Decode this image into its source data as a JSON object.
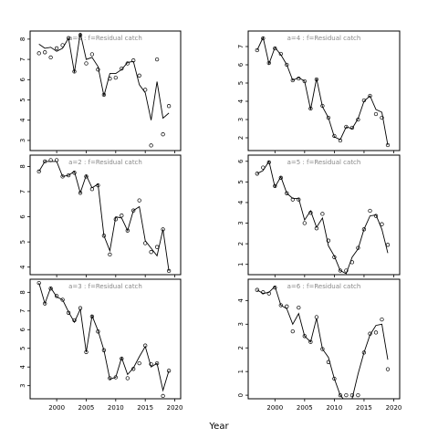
{
  "xlabel": "Year",
  "chart_data": [
    {
      "type": "line",
      "title": "a=0 : f=Residual catch",
      "x_ticks": [
        2000,
        2005,
        2010,
        2015,
        2020
      ],
      "y_ticks": [
        3,
        4,
        5,
        6,
        7,
        8
      ],
      "xlim": [
        1995.5,
        2021.0
      ],
      "ylim": [
        2.5,
        8.4
      ],
      "series": [
        {
          "kind": "points",
          "x": [
            1997,
            1998,
            1999,
            2000,
            2001,
            2002,
            2003,
            2004,
            2005,
            2006,
            2007,
            2008,
            2009,
            2010,
            2011,
            2012,
            2013,
            2014,
            2015,
            2016,
            2017,
            2018,
            2019
          ],
          "y": [
            7.3,
            7.35,
            7.1,
            7.55,
            7.7,
            8.05,
            6.4,
            8.2,
            6.8,
            7.25,
            6.5,
            5.25,
            6.05,
            6.1,
            6.55,
            6.8,
            6.95,
            6.2,
            5.5,
            2.75,
            7.0,
            3.3,
            4.7
          ]
        },
        {
          "kind": "line",
          "x": [
            1997,
            1998,
            1999,
            2000,
            2001,
            2002,
            2003,
            2004,
            2005,
            2006,
            2007,
            2008,
            2009,
            2010,
            2011,
            2012,
            2013,
            2014,
            2015,
            2016,
            2017,
            2018,
            2019
          ],
          "y": [
            7.75,
            7.55,
            7.6,
            7.4,
            7.55,
            8.05,
            6.35,
            8.3,
            7.0,
            7.1,
            6.65,
            5.2,
            6.3,
            6.3,
            6.5,
            6.85,
            6.9,
            5.75,
            5.35,
            4.0,
            5.9,
            4.1,
            4.35
          ]
        }
      ]
    },
    {
      "type": "line",
      "title": "a=4 : f=Residual catch",
      "x_ticks": [
        2000,
        2005,
        2010,
        2015,
        2020
      ],
      "y_ticks": [
        2,
        3,
        4,
        5,
        6,
        7
      ],
      "xlim": [
        1995.5,
        2021.0
      ],
      "ylim": [
        1.3,
        7.85
      ],
      "series": [
        {
          "kind": "points",
          "x": [
            1997,
            1998,
            1999,
            2000,
            2001,
            2002,
            2003,
            2004,
            2005,
            2006,
            2007,
            2008,
            2009,
            2010,
            2011,
            2012,
            2013,
            2014,
            2015,
            2016,
            2017,
            2018,
            2019
          ],
          "y": [
            6.8,
            7.45,
            6.1,
            6.9,
            6.6,
            6.0,
            5.15,
            5.25,
            5.1,
            3.6,
            5.2,
            3.75,
            3.1,
            2.1,
            1.85,
            2.6,
            2.55,
            3.0,
            4.05,
            4.3,
            3.3,
            3.1,
            1.6
          ]
        },
        {
          "kind": "line",
          "x": [
            1997,
            1998,
            1999,
            2000,
            2001,
            2002,
            2003,
            2004,
            2005,
            2006,
            2007,
            2008,
            2009,
            2010,
            2011,
            2012,
            2013,
            2014,
            2015,
            2016,
            2017,
            2018,
            2019
          ],
          "y": [
            6.8,
            7.5,
            6.05,
            6.95,
            6.55,
            6.0,
            5.15,
            5.3,
            5.1,
            3.55,
            5.25,
            3.7,
            3.1,
            2.05,
            1.9,
            2.6,
            2.5,
            3.05,
            4.0,
            4.3,
            3.55,
            3.4,
            1.6
          ]
        }
      ]
    },
    {
      "type": "line",
      "title": "a=2 : f=Residual catch",
      "x_ticks": [
        2000,
        2005,
        2010,
        2015,
        2020
      ],
      "y_ticks": [
        4,
        5,
        6,
        7,
        8
      ],
      "xlim": [
        1995.5,
        2021.0
      ],
      "ylim": [
        3.7,
        8.45
      ],
      "series": [
        {
          "kind": "points",
          "x": [
            1997,
            1998,
            1999,
            2000,
            2001,
            2002,
            2003,
            2004,
            2005,
            2006,
            2007,
            2008,
            2009,
            2010,
            2011,
            2012,
            2013,
            2014,
            2015,
            2016,
            2017,
            2018,
            2019
          ],
          "y": [
            7.8,
            8.2,
            8.25,
            8.25,
            7.6,
            7.65,
            7.75,
            6.95,
            7.6,
            7.1,
            7.25,
            5.25,
            4.5,
            5.9,
            6.05,
            5.45,
            6.25,
            6.65,
            4.95,
            4.6,
            4.8,
            5.5,
            3.85
          ]
        },
        {
          "kind": "line",
          "x": [
            1997,
            1998,
            1999,
            2000,
            2001,
            2002,
            2003,
            2004,
            2005,
            2006,
            2007,
            2008,
            2009,
            2010,
            2011,
            2012,
            2013,
            2014,
            2015,
            2016,
            2017,
            2018,
            2019
          ],
          "y": [
            7.8,
            8.2,
            8.2,
            8.2,
            7.6,
            7.65,
            7.8,
            6.95,
            7.65,
            7.15,
            7.3,
            5.25,
            4.65,
            6.0,
            5.95,
            5.45,
            6.25,
            6.4,
            5.05,
            4.75,
            4.45,
            5.5,
            3.85
          ]
        }
      ]
    },
    {
      "type": "line",
      "title": "a=5 : f=Residual catch",
      "x_ticks": [
        2000,
        2005,
        2010,
        2015,
        2020
      ],
      "y_ticks": [
        1,
        2,
        3,
        4,
        5,
        6
      ],
      "xlim": [
        1995.5,
        2021.0
      ],
      "ylim": [
        0.5,
        6.3
      ],
      "series": [
        {
          "kind": "points",
          "x": [
            1997,
            1998,
            1999,
            2000,
            2001,
            2002,
            2003,
            2004,
            2005,
            2006,
            2007,
            2008,
            2009,
            2010,
            2011,
            2012,
            2013,
            2014,
            2015,
            2016,
            2017,
            2018,
            2019
          ],
          "y": [
            5.4,
            5.7,
            5.95,
            4.8,
            5.2,
            4.45,
            4.15,
            4.15,
            3.0,
            3.5,
            2.75,
            3.45,
            2.15,
            1.35,
            0.7,
            0.7,
            1.1,
            1.8,
            2.7,
            3.6,
            3.35,
            2.95,
            1.95
          ]
        },
        {
          "kind": "line",
          "x": [
            1997,
            1998,
            1999,
            2000,
            2001,
            2002,
            2003,
            2004,
            2005,
            2006,
            2007,
            2008,
            2009,
            2010,
            2011,
            2012,
            2013,
            2014,
            2015,
            2016,
            2017,
            2018,
            2019
          ],
          "y": [
            5.4,
            5.55,
            6.0,
            4.75,
            5.25,
            4.45,
            4.2,
            4.2,
            3.15,
            3.6,
            2.8,
            3.25,
            1.9,
            1.4,
            0.7,
            0.55,
            1.35,
            1.75,
            2.7,
            3.35,
            3.4,
            2.7,
            1.55
          ]
        }
      ]
    },
    {
      "type": "line",
      "title": "a=3 : f=Residual catch",
      "x_ticks": [
        2000,
        2005,
        2010,
        2015,
        2020
      ],
      "y_ticks": [
        3,
        4,
        5,
        6,
        7,
        8
      ],
      "xlim": [
        1995.5,
        2021.0
      ],
      "ylim": [
        2.3,
        8.7
      ],
      "series": [
        {
          "kind": "points",
          "x": [
            1997,
            1998,
            1999,
            2000,
            2001,
            2002,
            2003,
            2004,
            2005,
            2006,
            2007,
            2008,
            2009,
            2010,
            2011,
            2012,
            2013,
            2014,
            2015,
            2016,
            2017,
            2018,
            2019
          ],
          "y": [
            8.5,
            7.4,
            8.2,
            7.8,
            7.6,
            6.9,
            6.5,
            7.15,
            4.8,
            6.7,
            5.9,
            4.9,
            3.4,
            3.45,
            4.45,
            3.4,
            3.9,
            4.2,
            5.15,
            4.15,
            4.2,
            2.45,
            3.8
          ]
        },
        {
          "kind": "line",
          "x": [
            1997,
            1998,
            1999,
            2000,
            2001,
            2002,
            2003,
            2004,
            2005,
            2006,
            2007,
            2008,
            2009,
            2010,
            2011,
            2012,
            2013,
            2014,
            2015,
            2016,
            2017,
            2018,
            2019
          ],
          "y": [
            8.5,
            7.4,
            8.25,
            7.75,
            7.6,
            6.95,
            6.4,
            7.1,
            4.8,
            6.75,
            5.95,
            4.9,
            3.35,
            3.45,
            4.5,
            3.6,
            3.95,
            4.55,
            5.1,
            4.0,
            4.2,
            2.75,
            3.8
          ]
        }
      ]
    },
    {
      "type": "line",
      "title": "a=6 : f=Residual catch",
      "x_ticks": [
        2000,
        2005,
        2010,
        2015,
        2020
      ],
      "y_ticks": [
        0,
        1,
        2,
        3,
        4
      ],
      "xlim": [
        1995.5,
        2021.0
      ],
      "ylim": [
        -0.15,
        4.9
      ],
      "series": [
        {
          "kind": "points",
          "x": [
            1997,
            1998,
            1999,
            2000,
            2001,
            2002,
            2003,
            2004,
            2005,
            2006,
            2007,
            2008,
            2009,
            2010,
            2011,
            2012,
            2013,
            2014,
            2015,
            2016,
            2017,
            2018,
            2019
          ],
          "y": [
            4.45,
            4.35,
            4.3,
            4.55,
            3.8,
            3.75,
            2.7,
            3.7,
            2.5,
            2.25,
            3.3,
            1.95,
            1.4,
            0.7,
            0.0,
            0.0,
            0.0,
            0.0,
            1.8,
            2.6,
            2.65,
            3.2,
            1.1
          ]
        },
        {
          "kind": "line",
          "x": [
            1997,
            1998,
            1999,
            2000,
            2001,
            2002,
            2003,
            2004,
            2005,
            2006,
            2007,
            2008,
            2009,
            2010,
            2011,
            2012,
            2013,
            2014,
            2015,
            2016,
            2017,
            2018,
            2019
          ],
          "y": [
            4.45,
            4.3,
            4.35,
            4.6,
            3.8,
            3.65,
            3.0,
            3.45,
            2.5,
            2.25,
            3.25,
            1.95,
            1.6,
            0.7,
            0.0,
            -0.3,
            -0.15,
            0.9,
            1.8,
            2.55,
            2.95,
            3.0,
            1.5
          ]
        }
      ]
    }
  ]
}
